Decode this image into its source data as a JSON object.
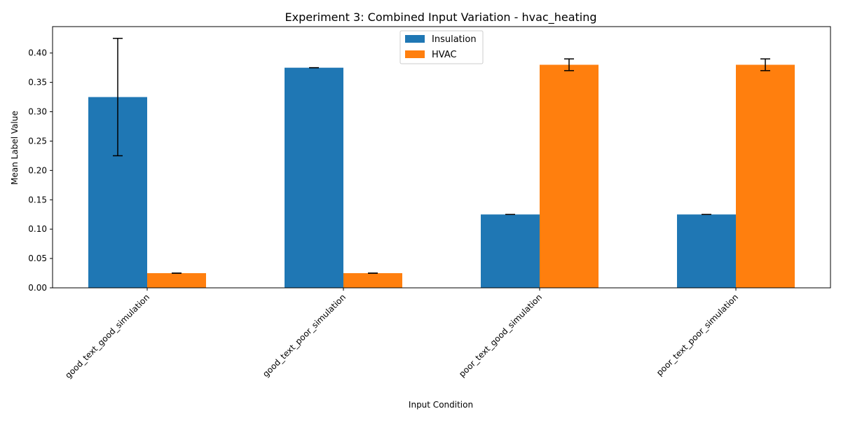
{
  "chart_data": {
    "type": "bar",
    "title": "Experiment 3: Combined Input Variation - hvac_heating",
    "xlabel": "Input Condition",
    "ylabel": "Mean Label Value",
    "categories": [
      "good_text_good_simulation",
      "good_text_poor_simulation",
      "poor_text_good_simulation",
      "poor_text_poor_simulation"
    ],
    "series": [
      {
        "name": "Insulation",
        "color": "#1f77b4",
        "values": [
          0.325,
          0.375,
          0.125,
          0.125
        ],
        "errors": [
          0.1,
          0.0,
          0.0,
          0.0
        ]
      },
      {
        "name": "HVAC",
        "color": "#ff7f0e",
        "values": [
          0.025,
          0.025,
          0.38,
          0.38
        ],
        "errors": [
          0.0,
          0.0,
          0.01,
          0.01
        ]
      }
    ],
    "ylim": [
      0,
      0.445
    ],
    "yticks": [
      "0.00",
      "0.05",
      "0.10",
      "0.15",
      "0.20",
      "0.25",
      "0.30",
      "0.35",
      "0.40"
    ],
    "grid": false,
    "legend_position": "top-center"
  }
}
